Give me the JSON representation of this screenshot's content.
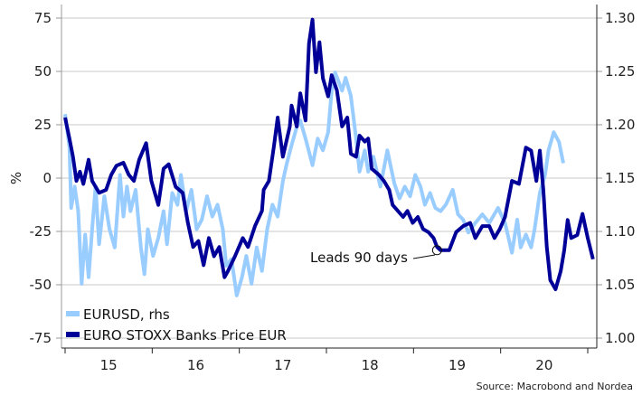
{
  "chart_data": {
    "type": "line",
    "ylabel": "%",
    "source": "Source: Macrobond and Nordea",
    "annotation": "Leads 90 days",
    "annotation_point": {
      "year": 2019.27,
      "value": -33.8
    },
    "x_range": [
      2015.0,
      2021.0
    ],
    "x_tick_labels": [
      "15",
      "16",
      "17",
      "18",
      "19",
      "20"
    ],
    "ylim_left": [
      -75,
      75
    ],
    "ylim_right": [
      1.0,
      1.3
    ],
    "left_ticks": [
      75,
      50,
      25,
      0,
      -25,
      -50,
      -75
    ],
    "left_tick_labels": [
      "75",
      "50",
      "25",
      "0",
      "-25",
      "-50",
      "-75"
    ],
    "right_ticks": [
      1.3,
      1.25,
      1.2,
      1.15,
      1.1,
      1.05,
      1.0
    ],
    "right_tick_labels": [
      "1.30",
      "1.25",
      "1.20",
      "1.15",
      "1.10",
      "1.05",
      "1.00"
    ],
    "grid": true,
    "legend_position": "bottom-left",
    "series": [
      {
        "name": "EURUSD, rhs",
        "axis": "right",
        "color": "#99ccff",
        "x": [
          2015.0,
          2015.05,
          2015.07,
          2015.11,
          2015.15,
          2015.19,
          2015.23,
          2015.27,
          2015.31,
          2015.35,
          2015.39,
          2015.45,
          2015.51,
          2015.57,
          2015.63,
          2015.67,
          2015.71,
          2015.75,
          2015.81,
          2015.87,
          2015.91,
          2015.95,
          2016.01,
          2016.07,
          2016.13,
          2016.17,
          2016.23,
          2016.29,
          2016.33,
          2016.39,
          2016.45,
          2016.51,
          2016.57,
          2016.63,
          2016.69,
          2016.75,
          2016.81,
          2016.85,
          2016.91,
          2016.97,
          2017.03,
          2017.08,
          2017.14,
          2017.2,
          2017.26,
          2017.32,
          2017.38,
          2017.44,
          2017.5,
          2017.54,
          2017.6,
          2017.66,
          2017.7,
          2017.76,
          2017.84,
          2017.9,
          2017.96,
          2018.02,
          2018.06,
          2018.1,
          2018.18,
          2018.22,
          2018.28,
          2018.34,
          2018.38,
          2018.44,
          2018.48,
          2018.54,
          2018.62,
          2018.7,
          2018.78,
          2018.84,
          2018.9,
          2018.96,
          2019.02,
          2019.08,
          2019.13,
          2019.19,
          2019.25,
          2019.31,
          2019.37,
          2019.45,
          2019.51,
          2019.57,
          2019.63,
          2019.71,
          2019.79,
          2019.87,
          2019.97,
          2020.05,
          2020.13,
          2020.19,
          2020.23,
          2020.29,
          2020.35,
          2020.39,
          2020.45,
          2020.51,
          2020.55,
          2020.61,
          2020.67,
          2020.72
        ],
        "values": [
          1.21,
          1.179,
          1.122,
          1.142,
          1.119,
          1.051,
          1.097,
          1.057,
          1.102,
          1.142,
          1.088,
          1.133,
          1.102,
          1.085,
          1.153,
          1.114,
          1.142,
          1.119,
          1.139,
          1.085,
          1.06,
          1.102,
          1.077,
          1.094,
          1.119,
          1.088,
          1.136,
          1.125,
          1.153,
          1.119,
          1.139,
          1.102,
          1.111,
          1.133,
          1.114,
          1.125,
          1.102,
          1.068,
          1.074,
          1.04,
          1.057,
          1.077,
          1.051,
          1.085,
          1.063,
          1.102,
          1.125,
          1.114,
          1.147,
          1.162,
          1.181,
          1.198,
          1.204,
          1.187,
          1.162,
          1.187,
          1.176,
          1.193,
          1.232,
          1.249,
          1.232,
          1.244,
          1.227,
          1.187,
          1.156,
          1.176,
          1.156,
          1.17,
          1.142,
          1.176,
          1.145,
          1.131,
          1.142,
          1.133,
          1.153,
          1.142,
          1.125,
          1.136,
          1.122,
          1.119,
          1.125,
          1.139,
          1.116,
          1.111,
          1.099,
          1.108,
          1.116,
          1.108,
          1.122,
          1.108,
          1.08,
          1.111,
          1.085,
          1.097,
          1.085,
          1.102,
          1.136,
          1.153,
          1.176,
          1.193,
          1.184,
          1.164
        ]
      },
      {
        "name": "EURO STOXX Banks Price EUR",
        "axis": "left",
        "color": "#000099",
        "x": [
          2015.0,
          2015.05,
          2015.09,
          2015.13,
          2015.17,
          2015.21,
          2015.27,
          2015.31,
          2015.39,
          2015.47,
          2015.53,
          2015.59,
          2015.67,
          2015.73,
          2015.79,
          2015.85,
          2015.93,
          2015.99,
          2016.07,
          2016.13,
          2016.19,
          2016.27,
          2016.35,
          2016.41,
          2016.47,
          2016.53,
          2016.59,
          2016.65,
          2016.71,
          2016.77,
          2016.83,
          2016.87,
          2016.95,
          2017.04,
          2017.1,
          2017.18,
          2017.26,
          2017.28,
          2017.34,
          2017.4,
          2017.44,
          2017.5,
          2017.58,
          2017.6,
          2017.66,
          2017.7,
          2017.76,
          2017.8,
          2017.84,
          2017.88,
          2017.92,
          2017.96,
          2018.02,
          2018.06,
          2018.12,
          2018.18,
          2018.24,
          2018.28,
          2018.34,
          2018.38,
          2018.44,
          2018.48,
          2018.52,
          2018.6,
          2018.66,
          2018.72,
          2018.76,
          2018.82,
          2018.88,
          2018.93,
          2018.99,
          2019.05,
          2019.11,
          2019.17,
          2019.23,
          2019.27,
          2019.31,
          2019.41,
          2019.49,
          2019.57,
          2019.65,
          2019.71,
          2019.79,
          2019.87,
          2019.93,
          2019.99,
          2020.05,
          2020.13,
          2020.21,
          2020.29,
          2020.35,
          2020.41,
          2020.45,
          2020.49,
          2020.53,
          2020.57,
          2020.63,
          2020.69,
          2020.73,
          2020.77,
          2020.81,
          2020.88,
          2020.94,
          2021.0,
          2021.06
        ],
        "values": [
          28.4,
          18.5,
          10.0,
          -1.3,
          3.0,
          -2.7,
          8.6,
          -1.3,
          -6.9,
          -5.5,
          1.6,
          5.8,
          7.2,
          1.6,
          -1.3,
          8.6,
          16.4,
          -1.3,
          -12.6,
          4.4,
          6.5,
          -4.1,
          -6.9,
          -21.0,
          -32.3,
          -29.5,
          -40.8,
          -28.1,
          -36.6,
          -32.3,
          -46.5,
          -43.6,
          -36.6,
          -28.1,
          -32.3,
          -22.5,
          -15.4,
          -5.5,
          -1.3,
          15.7,
          28.4,
          10.0,
          24.2,
          34.0,
          24.2,
          39.7,
          27.0,
          63.0,
          74.3,
          49.6,
          63.7,
          46.8,
          38.3,
          48.2,
          41.1,
          24.2,
          28.4,
          11.4,
          10.0,
          19.9,
          17.1,
          18.5,
          4.4,
          1.6,
          -1.3,
          -5.5,
          -12.6,
          -15.4,
          -18.2,
          -15.4,
          -21.0,
          -18.2,
          -23.9,
          -25.3,
          -28.1,
          -32.3,
          -33.8,
          -33.8,
          -25.3,
          -22.5,
          -21.0,
          -28.1,
          -22.5,
          -22.5,
          -28.1,
          -23.9,
          -18.2,
          -1.3,
          -2.7,
          14.3,
          12.9,
          -1.3,
          12.9,
          -5.5,
          -32.3,
          -47.9,
          -52.1,
          -43.6,
          -33.8,
          -19.6,
          -28.1,
          -26.7,
          -16.8,
          -28.1,
          -38.0
        ]
      }
    ]
  }
}
